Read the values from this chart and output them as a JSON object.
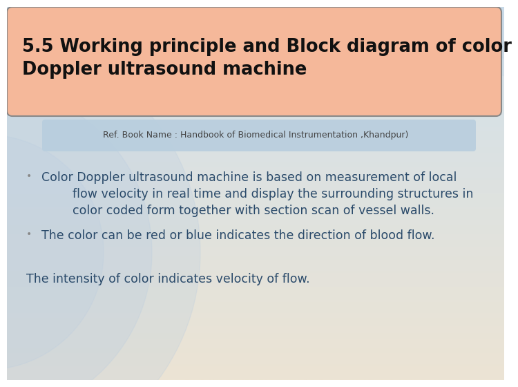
{
  "bg_top_color": "#c8d8e8",
  "bg_bottom_color": "#e8e0d0",
  "title_box_color_top": "#f0a080",
  "title_box_color": "#f5c0a8",
  "title_box_edge": "#888888",
  "title_text": "5.5 Working principle and Block diagram of color\nDoppler ultrasound machine",
  "title_text_color": "#111111",
  "ref_box_color": "#b8cedd",
  "ref_text": "Ref. Book Name : Handbook of Biomedical Instrumentation ,Khandpur)",
  "ref_text_color": "#444444",
  "body_text_color": "#2a4a6a",
  "bullet1_line1": "•   Color Doppler ultrasound machine is based on measurement of local",
  "bullet1_line2": "          flow velocity in real time and display the surrounding structures in",
  "bullet1_line3": "          color coded form together with section scan of vessel walls.",
  "bullet2": "•   The color can be red or blue indicates the direction of blood flow.",
  "line3": "    The intensity of color indicates velocity of flow.",
  "font_family": "DejaVu Sans"
}
